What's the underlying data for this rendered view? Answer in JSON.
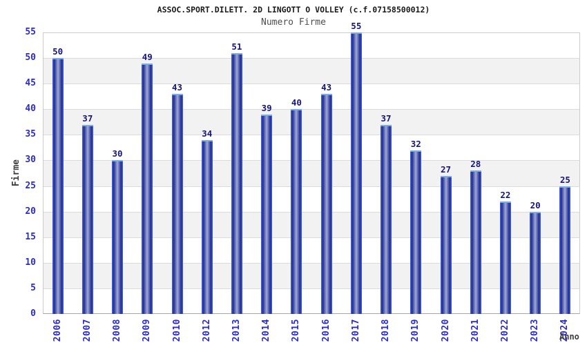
{
  "chart_data": {
    "type": "bar",
    "title": "ASSOC.SPORT.DILETT. 2D LINGOTT O VOLLEY (c.f.07158500012)",
    "subtitle": "Numero Firme",
    "xlabel": "Anno",
    "ylabel": "Firme",
    "categories": [
      "2006",
      "2007",
      "2008",
      "2009",
      "2010",
      "2012",
      "2013",
      "2014",
      "2015",
      "2016",
      "2017",
      "2018",
      "2019",
      "2020",
      "2021",
      "2022",
      "2023",
      "2024"
    ],
    "values": [
      50,
      37,
      30,
      49,
      43,
      34,
      51,
      39,
      40,
      43,
      55,
      37,
      32,
      27,
      28,
      22,
      20,
      25
    ],
    "ylim": [
      0,
      55
    ],
    "ytick_step": 5,
    "grid": "horizontal gridlines every 5 units with alternating white/gray bands",
    "legend_position": "none",
    "bar_labels_shown": true,
    "colors": {
      "bar_outline": "#3a55dd",
      "bar_edge_dark": "#202b80",
      "bar_center_light": "#9fa9d8",
      "bar_top_cap": "#79aee8",
      "tick_label_blue": "#2b2bd4",
      "value_label_navy": "#16167e",
      "band_gray": "#f2f2f2",
      "gridline_gray": "#dbdbdb",
      "plot_border": "#cccccc",
      "axis_line": "#a6a6a6",
      "title_color": "#1a1a1a",
      "subtitle_color": "#4d4d4d",
      "axis_title_color": "#3d3d3d"
    }
  }
}
